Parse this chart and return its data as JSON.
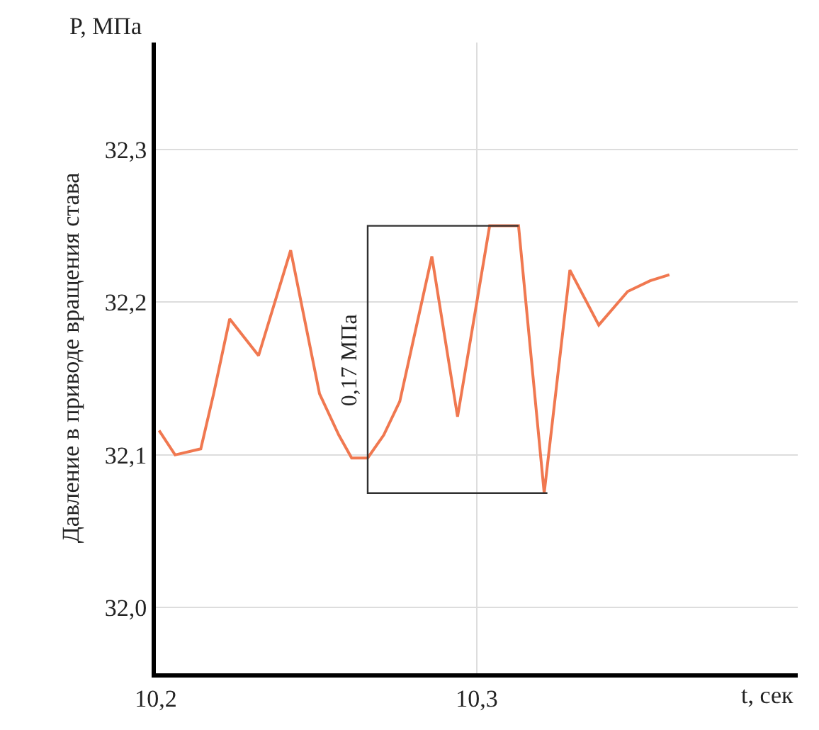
{
  "chart_data": {
    "type": "line",
    "ylabel": "Давление в приводе вращения става",
    "xlabel": "t, сек",
    "xlim": [
      10.2,
      10.4
    ],
    "xticks": [
      {
        "value": 10.2,
        "label": "10,2"
      },
      {
        "value": 10.3,
        "label": "10,3"
      }
    ],
    "ylim": [
      31.957,
      32.37
    ],
    "yticks": [
      {
        "value": 32.0,
        "label": "32,0"
      },
      {
        "value": 32.1,
        "label": "32,1"
      },
      {
        "value": 32.2,
        "label": "32,2"
      },
      {
        "value": 32.3,
        "label": "32,3"
      }
    ],
    "grid": true,
    "marker": "none",
    "line_style": "solid",
    "series": [
      {
        "color": "#f07850",
        "x": [
          10.201,
          10.206,
          10.214,
          10.218,
          10.223,
          10.232,
          10.242,
          10.251,
          10.257,
          10.261,
          10.266,
          10.271,
          10.276,
          10.286,
          10.294,
          10.304,
          10.313,
          10.321,
          10.329,
          10.338,
          10.347,
          10.354,
          10.36
        ],
        "values": [
          32.116,
          32.1,
          32.104,
          32.14,
          32.189,
          32.165,
          32.234,
          32.14,
          32.113,
          32.098,
          32.098,
          32.113,
          32.135,
          32.23,
          32.125,
          32.25,
          32.25,
          32.075,
          32.221,
          32.185,
          32.207,
          32.214,
          32.218
        ]
      },
      {
        "color": "#303030",
        "x": [
          10.313,
          10.266,
          10.266,
          10.322
        ],
        "values": [
          32.25,
          32.25,
          32.075,
          32.075
        ]
      }
    ],
    "annotations": [
      "P, МПа",
      "0,17 МПа"
    ]
  }
}
